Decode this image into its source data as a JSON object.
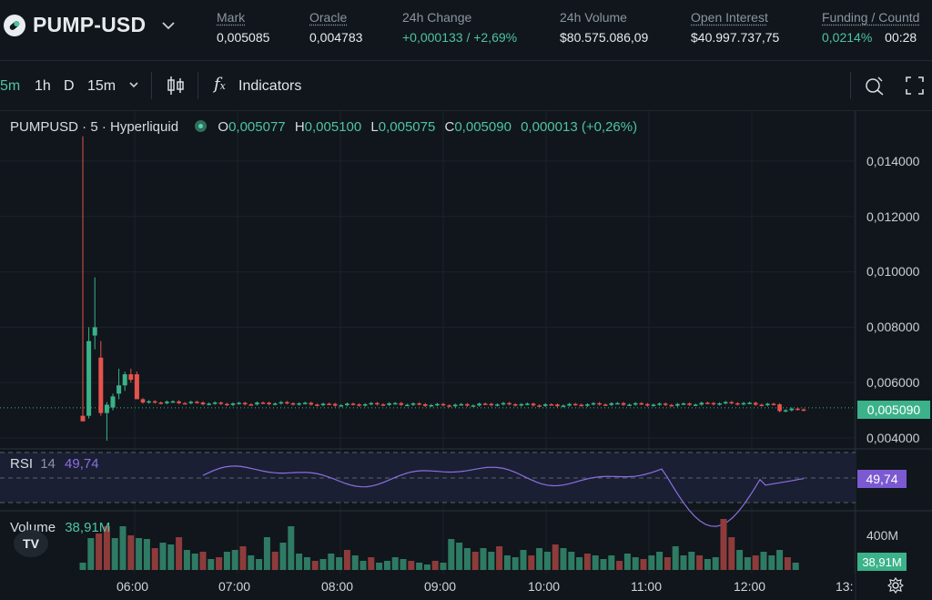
{
  "header": {
    "pair": "PUMP-USD",
    "stats": [
      {
        "label": "Mark",
        "value": "0,005085"
      },
      {
        "label": "Oracle",
        "value": "0,004783"
      },
      {
        "label": "24h Change",
        "value": "+0,000133 / +2,69%"
      },
      {
        "label": "24h Volume",
        "value": "$80.575.086,09"
      },
      {
        "label": "Open Interest",
        "value": "$40.997.737,75"
      },
      {
        "label": "Funding / Countd",
        "value": "0,0214%",
        "value2": "00:28"
      }
    ]
  },
  "toolbar": {
    "intervals": [
      "5m",
      "1h",
      "D",
      "15m"
    ],
    "indicators_label": "Indicators"
  },
  "legend": {
    "title": "PUMPUSD · 5 · Hyperliquid",
    "o_label": "O",
    "o": "0,005077",
    "h_label": "H",
    "h": "0,005100",
    "l_label": "L",
    "l": "0,005075",
    "c_label": "C",
    "c": "0,005090",
    "change": "0,000013 (+0,26%)"
  },
  "price_axis": [
    "0,014000",
    "0,012000",
    "0,010000",
    "0,008000",
    "0,006000",
    "0,004000"
  ],
  "last_price": "0,005090",
  "rsi": {
    "label": "RSI",
    "period": "14",
    "value": "49,74"
  },
  "volume": {
    "label": "Volume",
    "value": "38,91M",
    "axis_label": "400M"
  },
  "time_axis": [
    "06:00",
    "07:00",
    "08:00",
    "09:00",
    "10:00",
    "11:00",
    "12:00",
    "13:"
  ],
  "tv_logo": "TV",
  "colors": {
    "up": "#3bb289",
    "down": "#e5534b",
    "rsi": "#8c6fe0",
    "bg": "#10161c"
  },
  "chart_data": {
    "type": "candlestick",
    "interval": "5m",
    "ylim": [
      0.0038,
      0.0155
    ],
    "candles": [
      {
        "t": "05:32",
        "o": 0.0048,
        "h": 0.0149,
        "l": 0.0046,
        "c": 0.0046
      },
      {
        "t": "05:37",
        "o": 0.0048,
        "h": 0.008,
        "l": 0.0047,
        "c": 0.0075
      },
      {
        "t": "05:42",
        "o": 0.0077,
        "h": 0.0098,
        "l": 0.0072,
        "c": 0.008
      },
      {
        "t": "05:47",
        "o": 0.0069,
        "h": 0.0075,
        "l": 0.0048,
        "c": 0.0049
      },
      {
        "t": "05:52",
        "o": 0.0049,
        "h": 0.0053,
        "l": 0.0039,
        "c": 0.0052
      },
      {
        "t": "05:57",
        "o": 0.0051,
        "h": 0.0056,
        "l": 0.005,
        "c": 0.0055
      },
      {
        "t": "06:02",
        "o": 0.0056,
        "h": 0.0065,
        "l": 0.0054,
        "c": 0.0059
      },
      {
        "t": "06:07",
        "o": 0.0059,
        "h": 0.0064,
        "l": 0.0057,
        "c": 0.0063
      },
      {
        "t": "06:12",
        "o": 0.0063,
        "h": 0.0065,
        "l": 0.006,
        "c": 0.0061
      },
      {
        "t": "06:17",
        "o": 0.0063,
        "h": 0.0064,
        "l": 0.0054,
        "c": 0.0054
      }
    ],
    "rsi_period": 14,
    "rsi_last": 49.74,
    "rsi_bands": [
      70,
      50,
      30
    ],
    "volume_last": "38,91M"
  }
}
